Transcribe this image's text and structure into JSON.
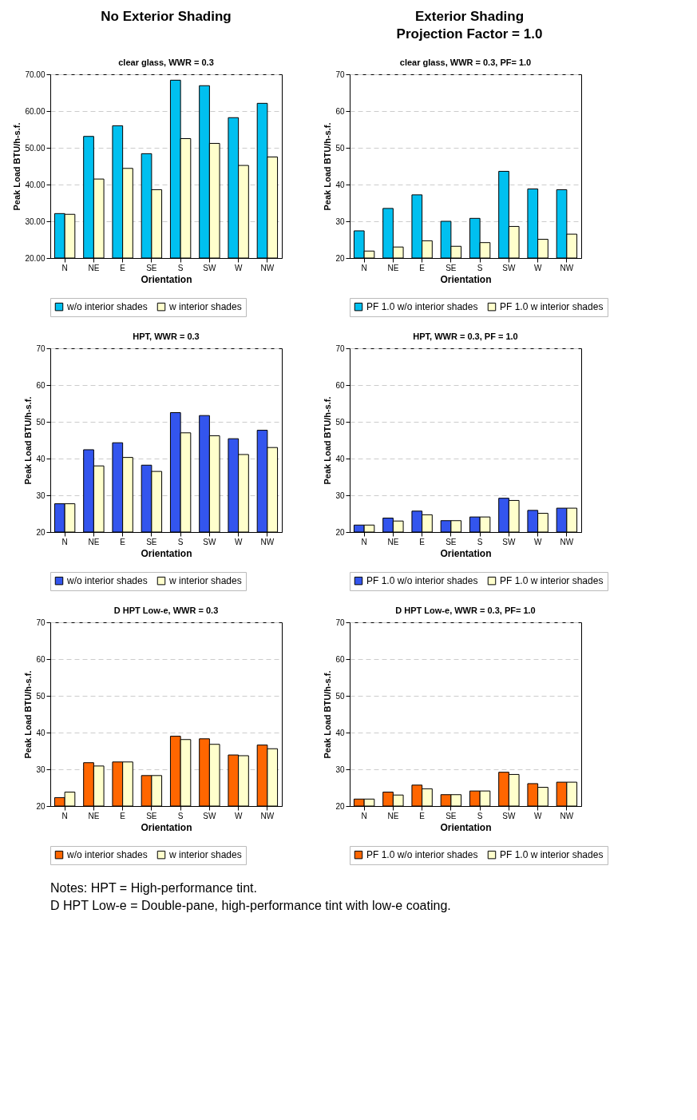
{
  "chart_data": [
    {
      "type": "bar",
      "title": "clear glass, WWR = 0.3",
      "xlabel": "Orientation",
      "ylabel": "Peak Load BTU/h-s.f.",
      "annotations": [
        "No Exterior Shading"
      ],
      "categories": [
        "N",
        "NE",
        "E",
        "SE",
        "S",
        "SW",
        "W",
        "NW"
      ],
      "series": [
        {
          "name": "w/o interior shades",
          "color": "#00c0f0",
          "values": [
            32.1,
            53.1,
            56.0,
            48.4,
            68.4,
            66.9,
            58.2,
            62.1
          ]
        },
        {
          "name": "w interior shades",
          "color": "#ffffcc",
          "values": [
            31.9,
            41.5,
            44.4,
            38.6,
            52.5,
            51.2,
            45.2,
            47.5
          ]
        }
      ],
      "ylim": [
        20,
        70
      ],
      "yticks": [
        {
          "value": 20,
          "label": "20.00"
        },
        {
          "value": 30,
          "label": "30.00"
        },
        {
          "value": 40,
          "label": "40.00"
        },
        {
          "value": 50,
          "label": "50.00"
        },
        {
          "value": 60,
          "label": "60.00"
        },
        {
          "value": 70,
          "label": "70.00"
        }
      ],
      "grid": "y",
      "legend": "bottom"
    },
    {
      "type": "bar",
      "title": "clear glass, WWR = 0.3, PF= 1.0",
      "xlabel": "Orientation",
      "ylabel": "Peak Load BTU/h-s.f.",
      "annotations": [
        "Exterior Shading",
        "Projection Factor = 1.0"
      ],
      "categories": [
        "N",
        "NE",
        "E",
        "SE",
        "S",
        "SW",
        "W",
        "NW"
      ],
      "series": [
        {
          "name": "PF 1.0 w/o interior shades",
          "color": "#00c0f0",
          "values": [
            27.4,
            33.5,
            37.2,
            30.0,
            30.8,
            43.6,
            38.8,
            38.6
          ]
        },
        {
          "name": "PF 1.0 w interior shades",
          "color": "#ffffcc",
          "values": [
            21.9,
            23.0,
            24.7,
            23.2,
            24.2,
            28.6,
            25.1,
            26.5
          ]
        }
      ],
      "ylim": [
        20,
        70
      ],
      "yticks": [
        20,
        30,
        40,
        50,
        60,
        70
      ],
      "grid": "y",
      "legend": "bottom"
    },
    {
      "type": "bar",
      "title": "HPT, WWR = 0.3",
      "xlabel": "Orientation",
      "ylabel": "Peak Load BTU/h-s.f.",
      "categories": [
        "N",
        "NE",
        "E",
        "SE",
        "S",
        "SW",
        "W",
        "NW"
      ],
      "series": [
        {
          "name": "w/o interior shades",
          "color": "#3355ee",
          "values": [
            27.7,
            42.4,
            44.3,
            38.2,
            52.5,
            51.7,
            45.4,
            47.7
          ]
        },
        {
          "name": "w interior shades",
          "color": "#ffffcc",
          "values": [
            27.7,
            38.0,
            40.3,
            36.5,
            47.0,
            46.2,
            41.1,
            43.0
          ]
        }
      ],
      "ylim": [
        20,
        70
      ],
      "yticks": [
        20,
        30,
        40,
        50,
        60,
        70
      ],
      "grid": "y",
      "legend": "bottom"
    },
    {
      "type": "bar",
      "title": "HPT, WWR = 0.3, PF = 1.0",
      "xlabel": "Orientation",
      "ylabel": "Peak Load BTU/h-s.f.",
      "categories": [
        "N",
        "NE",
        "E",
        "SE",
        "S",
        "SW",
        "W",
        "NW"
      ],
      "series": [
        {
          "name": "PF 1.0 w/o interior shades",
          "color": "#3355ee",
          "values": [
            21.9,
            23.8,
            25.7,
            23.1,
            24.1,
            29.2,
            25.9,
            26.5
          ]
        },
        {
          "name": "PF 1.0 w interior shades",
          "color": "#ffffcc",
          "values": [
            21.9,
            23.0,
            24.7,
            23.1,
            24.1,
            28.6,
            25.1,
            26.5
          ]
        }
      ],
      "ylim": [
        20,
        70
      ],
      "yticks": [
        20,
        30,
        40,
        50,
        60,
        70
      ],
      "grid": "y",
      "legend": "bottom"
    },
    {
      "type": "bar",
      "title": "D HPT Low-e, WWR = 0.3",
      "xlabel": "Orientation",
      "ylabel": "Peak Load BTU/h-s.f.",
      "annotations": [
        "Notes: HPT = High-performance tint.",
        "D HPT Low-e = Double-pane, high-performance tint with low-e coating."
      ],
      "categories": [
        "N",
        "NE",
        "E",
        "SE",
        "S",
        "SW",
        "W",
        "NW"
      ],
      "series": [
        {
          "name": "w/o interior shades",
          "color": "#ff6600",
          "values": [
            22.3,
            31.8,
            32.0,
            28.3,
            39.0,
            38.3,
            33.9,
            36.6
          ]
        },
        {
          "name": "w interior shades",
          "color": "#ffffcc",
          "values": [
            23.8,
            30.9,
            32.0,
            28.3,
            38.1,
            36.8,
            33.7,
            35.6
          ]
        }
      ],
      "ylim": [
        20,
        70
      ],
      "yticks": [
        20,
        30,
        40,
        50,
        60,
        70
      ],
      "grid": "y",
      "legend": "bottom"
    },
    {
      "type": "bar",
      "title": "D HPT Low-e, WWR = 0.3, PF= 1.0",
      "xlabel": "Orientation",
      "ylabel": "Peak Load BTU/h-s.f.",
      "categories": [
        "N",
        "NE",
        "E",
        "SE",
        "S",
        "SW",
        "W",
        "NW"
      ],
      "series": [
        {
          "name": "PF 1.0 w/o interior shades",
          "color": "#ff6600",
          "values": [
            21.9,
            23.8,
            25.7,
            23.1,
            24.1,
            29.2,
            26.1,
            26.5
          ]
        },
        {
          "name": "PF 1.0 w interior shades",
          "color": "#ffffcc",
          "values": [
            21.9,
            23.0,
            24.7,
            23.1,
            24.1,
            28.6,
            25.1,
            26.5
          ]
        }
      ],
      "ylim": [
        20,
        70
      ],
      "yticks": [
        20,
        30,
        40,
        50,
        60,
        70
      ],
      "grid": "y",
      "legend": "bottom"
    }
  ]
}
